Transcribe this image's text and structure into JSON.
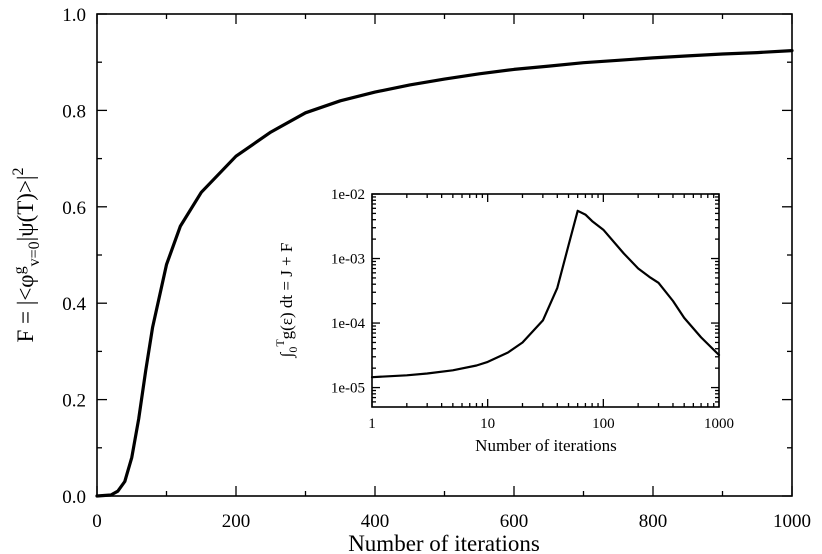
{
  "chart_data": [
    {
      "type": "line",
      "xlabel": "Number of iterations",
      "ylabel": "F = |<φ^g_{v=0}|ψ(T)>|^2",
      "ylabel_parts": {
        "a": "F  =  |<φ",
        "b": "g",
        "c": "v=0",
        "d": "|ψ(T)>|",
        "e": "2"
      },
      "xlim": [
        0,
        1000
      ],
      "ylim": [
        0.0,
        1.0
      ],
      "xticks": [
        "0",
        "200",
        "400",
        "600",
        "800",
        "1000"
      ],
      "yticks": [
        "0.0",
        "0.2",
        "0.4",
        "0.6",
        "0.8",
        "1.0"
      ],
      "grid": false,
      "series": [
        {
          "x": [
            0,
            20,
            30,
            40,
            50,
            60,
            70,
            80,
            100,
            120,
            150,
            200,
            250,
            300,
            350,
            400,
            450,
            500,
            550,
            600,
            650,
            700,
            750,
            800,
            850,
            900,
            950,
            1000
          ],
          "y": [
            0.0,
            0.002,
            0.01,
            0.03,
            0.08,
            0.16,
            0.26,
            0.35,
            0.48,
            0.56,
            0.63,
            0.705,
            0.755,
            0.795,
            0.82,
            0.838,
            0.853,
            0.865,
            0.876,
            0.885,
            0.892,
            0.899,
            0.904,
            0.909,
            0.913,
            0.917,
            0.92,
            0.924
          ]
        }
      ]
    },
    {
      "type": "line",
      "xlabel": "Number of iterations",
      "ylabel": "∫_0^T g(ε) dt = J + F",
      "ylabel_parts": {
        "a": "∫",
        "b": "0",
        "c": "T",
        "d": "g(ε) dt  = J + F"
      },
      "xscale": "log",
      "yscale": "log",
      "xlim": [
        1,
        1000
      ],
      "ylim": [
        5e-06,
        0.01
      ],
      "xticks": [
        "1",
        "10",
        "100",
        "1000"
      ],
      "yticks": [
        "1e-05",
        "1e-04",
        "1e-03",
        "1e-02"
      ],
      "grid": false,
      "series": [
        {
          "x": [
            1,
            2,
            3,
            5,
            8,
            10,
            15,
            20,
            30,
            40,
            50,
            60,
            70,
            80,
            100,
            150,
            200,
            250,
            300,
            400,
            500,
            700,
            1000
          ],
          "y": [
            1.45e-05,
            1.55e-05,
            1.65e-05,
            1.85e-05,
            2.2e-05,
            2.5e-05,
            3.5e-05,
            5e-05,
            0.00011,
            0.00035,
            0.0016,
            0.0055,
            0.0048,
            0.0038,
            0.0028,
            0.0012,
            0.0007,
            0.00052,
            0.00042,
            0.00022,
            0.00012,
            6e-05,
            3.2e-05
          ]
        }
      ]
    }
  ]
}
